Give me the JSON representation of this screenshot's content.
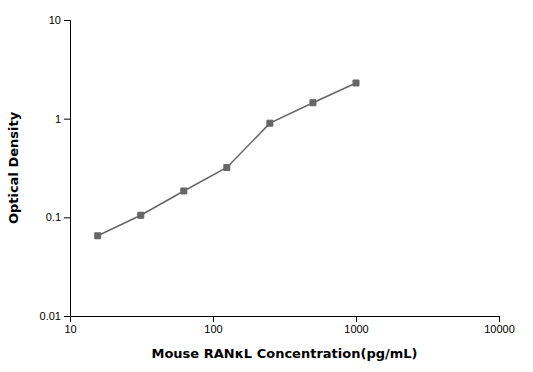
{
  "chart_data": {
    "type": "line",
    "x": [
      15.625,
      31.25,
      62.5,
      125,
      250,
      500,
      1000
    ],
    "values": [
      0.065,
      0.105,
      0.185,
      0.32,
      0.9,
      1.45,
      2.3
    ],
    "xlabel": "Mouse RANκL Concentration(pg/mL)",
    "ylabel": "Optical Density",
    "xlim": [
      10,
      10000
    ],
    "ylim": [
      0.01,
      10
    ],
    "xticks": [
      10,
      100,
      1000,
      10000
    ],
    "yticks": [
      0.01,
      0.1,
      1,
      10
    ],
    "log": true,
    "grid": false,
    "color": "#666666",
    "marker": "square"
  }
}
